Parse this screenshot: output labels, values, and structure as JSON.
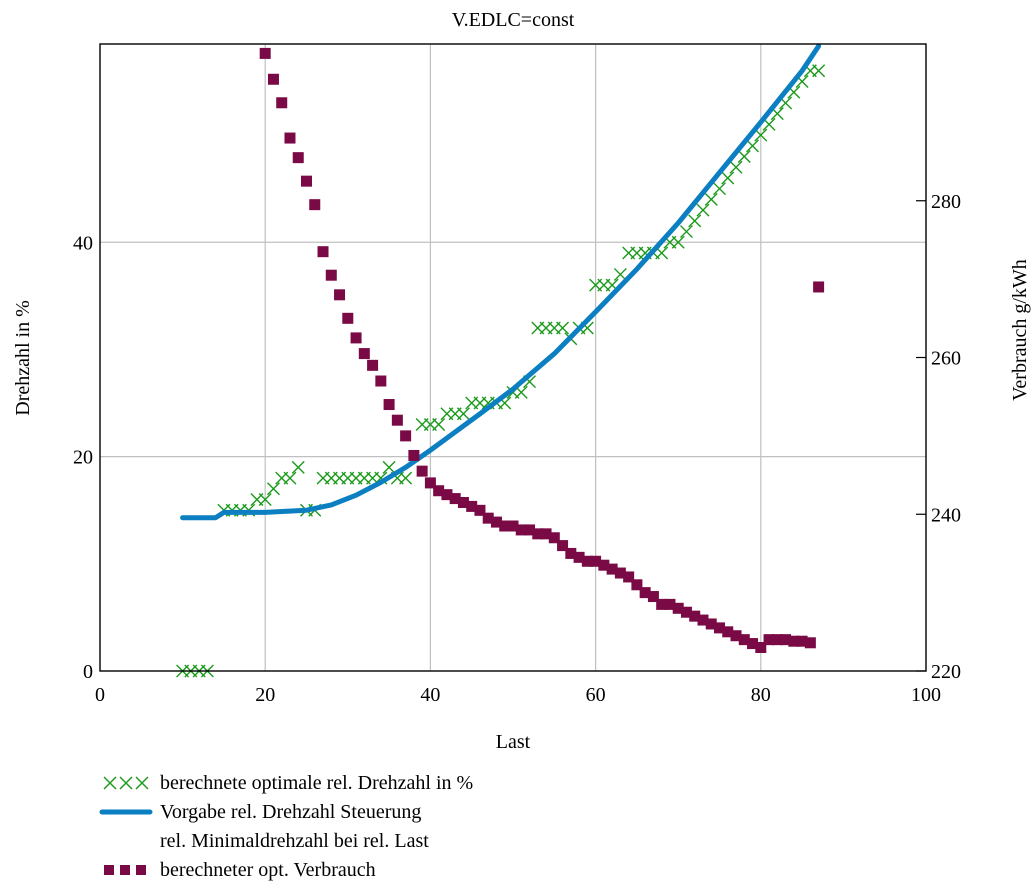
{
  "chart_data": {
    "type": "line",
    "title": "V.EDLC=const",
    "xlabel": "Last",
    "ylabel_left": "Drehzahl in %",
    "ylabel_right": "Verbrauch g/kWh",
    "xlim": [
      0,
      100
    ],
    "ylim_left": [
      0,
      58.5
    ],
    "ylim_right": [
      220,
      300
    ],
    "x_ticks": [
      "0",
      "20",
      "40",
      "60",
      "80",
      "100"
    ],
    "y_left_ticks": [
      "0",
      "20",
      "40"
    ],
    "y_right_ticks": [
      "220",
      "240",
      "260",
      "280"
    ],
    "grid": true,
    "legend_position": "bottom-left",
    "colors": {
      "optimal": "#1a9a1a",
      "vorgabe": "#0b7fc1",
      "verbrauch": "#7a0a45",
      "grid": "#c0c0c0"
    },
    "series": [
      {
        "name": "berechnete optimale rel. Drehzahl in %",
        "axis": "left",
        "marker": "x",
        "points": [
          [
            10,
            0
          ],
          [
            11,
            0
          ],
          [
            12,
            0
          ],
          [
            13,
            0
          ],
          [
            15,
            15
          ],
          [
            16,
            15
          ],
          [
            17,
            15
          ],
          [
            18,
            15
          ],
          [
            19,
            16
          ],
          [
            20,
            16
          ],
          [
            21,
            17
          ],
          [
            22,
            18
          ],
          [
            23,
            18
          ],
          [
            24,
            19
          ],
          [
            25,
            15
          ],
          [
            26,
            15
          ],
          [
            27,
            18
          ],
          [
            28,
            18
          ],
          [
            29,
            18
          ],
          [
            30,
            18
          ],
          [
            31,
            18
          ],
          [
            32,
            18
          ],
          [
            33,
            18
          ],
          [
            34,
            18
          ],
          [
            35,
            19
          ],
          [
            36,
            18
          ],
          [
            37,
            18
          ],
          [
            39,
            23
          ],
          [
            40,
            23
          ],
          [
            41,
            23
          ],
          [
            42,
            24
          ],
          [
            43,
            24
          ],
          [
            44,
            24
          ],
          [
            45,
            25
          ],
          [
            46,
            25
          ],
          [
            47,
            25
          ],
          [
            48,
            25
          ],
          [
            49,
            25
          ],
          [
            50,
            26
          ],
          [
            51,
            26
          ],
          [
            52,
            27
          ],
          [
            53,
            32
          ],
          [
            54,
            32
          ],
          [
            55,
            32
          ],
          [
            56,
            32
          ],
          [
            57,
            31
          ],
          [
            58,
            32
          ],
          [
            59,
            32
          ],
          [
            60,
            36
          ],
          [
            61,
            36
          ],
          [
            62,
            36
          ],
          [
            63,
            37
          ],
          [
            64,
            39
          ],
          [
            65,
            39
          ],
          [
            66,
            39
          ],
          [
            67,
            39
          ],
          [
            68,
            39
          ],
          [
            69,
            40
          ],
          [
            70,
            40
          ],
          [
            71,
            41
          ],
          [
            72,
            42
          ],
          [
            73,
            43
          ],
          [
            74,
            44
          ],
          [
            75,
            45
          ],
          [
            76,
            46
          ],
          [
            77,
            47
          ],
          [
            78,
            48
          ],
          [
            79,
            49
          ],
          [
            80,
            50
          ],
          [
            81,
            51
          ],
          [
            82,
            52
          ],
          [
            83,
            53
          ],
          [
            84,
            54
          ],
          [
            85,
            55
          ],
          [
            86,
            56
          ],
          [
            87,
            56
          ]
        ]
      },
      {
        "name": "Vorgabe rel. Drehzahl Steuerung",
        "axis": "left",
        "marker": "line",
        "points": [
          [
            10,
            14.3
          ],
          [
            13,
            14.3
          ],
          [
            14,
            14.3
          ],
          [
            15,
            14.8
          ],
          [
            20,
            14.8
          ],
          [
            25,
            15.0
          ],
          [
            28,
            15.5
          ],
          [
            31,
            16.4
          ],
          [
            34,
            17.6
          ],
          [
            37,
            19.0
          ],
          [
            40,
            20.6
          ],
          [
            43,
            22.3
          ],
          [
            46,
            24.0
          ],
          [
            50,
            26.3
          ],
          [
            55,
            29.6
          ],
          [
            60,
            33.5
          ],
          [
            65,
            37.5
          ],
          [
            70,
            41.8
          ],
          [
            75,
            46.5
          ],
          [
            80,
            51.2
          ],
          [
            85,
            56.0
          ],
          [
            87,
            58.3
          ]
        ]
      },
      {
        "name": "rel. Minimaldrehzahl bei rel. Last",
        "axis": "left",
        "marker": "none",
        "points": []
      },
      {
        "name": "berechneter opt. Verbrauch",
        "axis": "right",
        "marker": "square",
        "points": [
          [
            20,
            298.8
          ],
          [
            21,
            295.5
          ],
          [
            22,
            292.5
          ],
          [
            23,
            288.0
          ],
          [
            24,
            285.5
          ],
          [
            25,
            282.5
          ],
          [
            26,
            279.5
          ],
          [
            27,
            273.5
          ],
          [
            28,
            270.5
          ],
          [
            29,
            268.0
          ],
          [
            30,
            265.0
          ],
          [
            31,
            262.5
          ],
          [
            32,
            260.5
          ],
          [
            33,
            259.0
          ],
          [
            34,
            257.0
          ],
          [
            35,
            254.0
          ],
          [
            36,
            252.0
          ],
          [
            37,
            250.0
          ],
          [
            38,
            247.5
          ],
          [
            39,
            245.5
          ],
          [
            40,
            244.0
          ],
          [
            41,
            243.0
          ],
          [
            42,
            242.5
          ],
          [
            43,
            242.0
          ],
          [
            44,
            241.5
          ],
          [
            45,
            241.0
          ],
          [
            46,
            240.5
          ],
          [
            47,
            239.5
          ],
          [
            48,
            239.0
          ],
          [
            49,
            238.5
          ],
          [
            50,
            238.5
          ],
          [
            51,
            238.0
          ],
          [
            52,
            238.0
          ],
          [
            53,
            237.5
          ],
          [
            54,
            237.5
          ],
          [
            55,
            237.0
          ],
          [
            56,
            236.0
          ],
          [
            57,
            235.0
          ],
          [
            58,
            234.5
          ],
          [
            59,
            234.0
          ],
          [
            60,
            234.0
          ],
          [
            61,
            233.5
          ],
          [
            62,
            233.0
          ],
          [
            63,
            232.5
          ],
          [
            64,
            232.0
          ],
          [
            65,
            231.0
          ],
          [
            66,
            230.0
          ],
          [
            67,
            229.5
          ],
          [
            68,
            228.5
          ],
          [
            69,
            228.5
          ],
          [
            70,
            228.0
          ],
          [
            71,
            227.5
          ],
          [
            72,
            227.0
          ],
          [
            73,
            226.5
          ],
          [
            74,
            226.0
          ],
          [
            75,
            225.5
          ],
          [
            76,
            225.0
          ],
          [
            77,
            224.5
          ],
          [
            78,
            224.0
          ],
          [
            79,
            223.5
          ],
          [
            80,
            223.0
          ],
          [
            81,
            224.0
          ],
          [
            82,
            224.0
          ],
          [
            83,
            224.0
          ],
          [
            84,
            223.8
          ],
          [
            85,
            223.8
          ],
          [
            86,
            223.6
          ],
          [
            87,
            269.0
          ]
        ]
      }
    ]
  }
}
